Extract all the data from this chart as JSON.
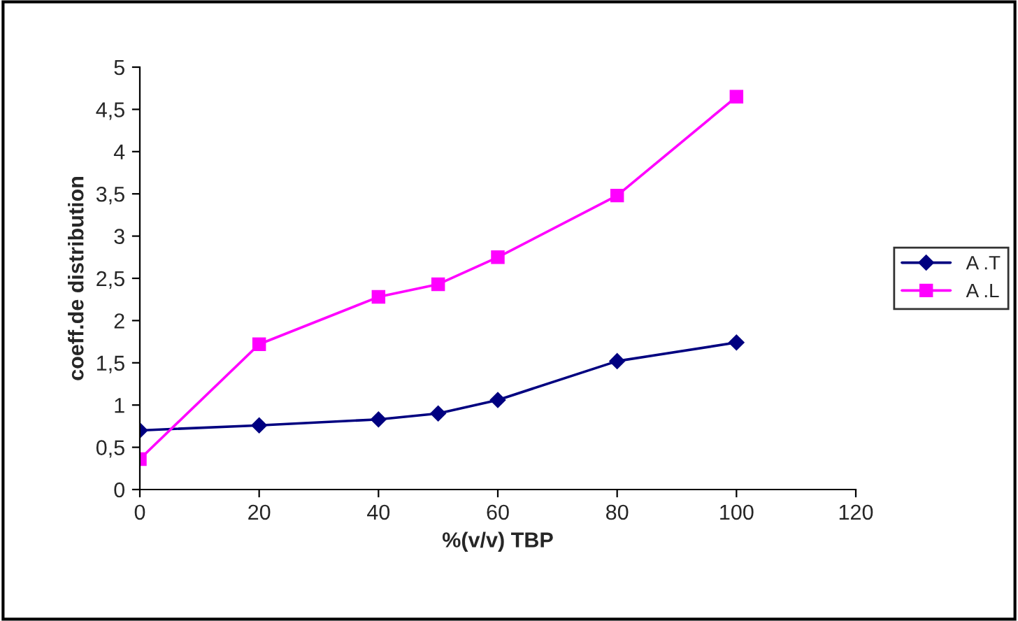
{
  "chart_data": {
    "type": "line",
    "xlabel": "%(v/v) TBP",
    "ylabel": "coeff.de distribution",
    "x": [
      0,
      20,
      40,
      50,
      60,
      80,
      100
    ],
    "series": [
      {
        "name": "A .T",
        "color": "#000080",
        "marker": "diamond",
        "values": [
          0.7,
          0.76,
          0.83,
          0.9,
          1.06,
          1.52,
          1.74
        ]
      },
      {
        "name": "A .L",
        "color": "#ff00ff",
        "marker": "square",
        "values": [
          0.36,
          1.72,
          2.28,
          2.43,
          2.75,
          3.48,
          4.65
        ]
      }
    ],
    "xlim": [
      0,
      120
    ],
    "xticks": [
      0,
      20,
      40,
      60,
      80,
      100,
      120
    ],
    "ylim": [
      0,
      5
    ],
    "yticks": [
      0,
      {
        "value": 0.5,
        "label": "0,5"
      },
      1,
      {
        "value": 1.5,
        "label": "1,5"
      },
      2,
      {
        "value": 2.5,
        "label": "2,5"
      },
      3,
      {
        "value": 3.5,
        "label": "3,5"
      },
      4,
      {
        "value": 4.5,
        "label": "4,5"
      },
      5
    ],
    "grid": false,
    "legend": "right",
    "line_style": "solid"
  }
}
